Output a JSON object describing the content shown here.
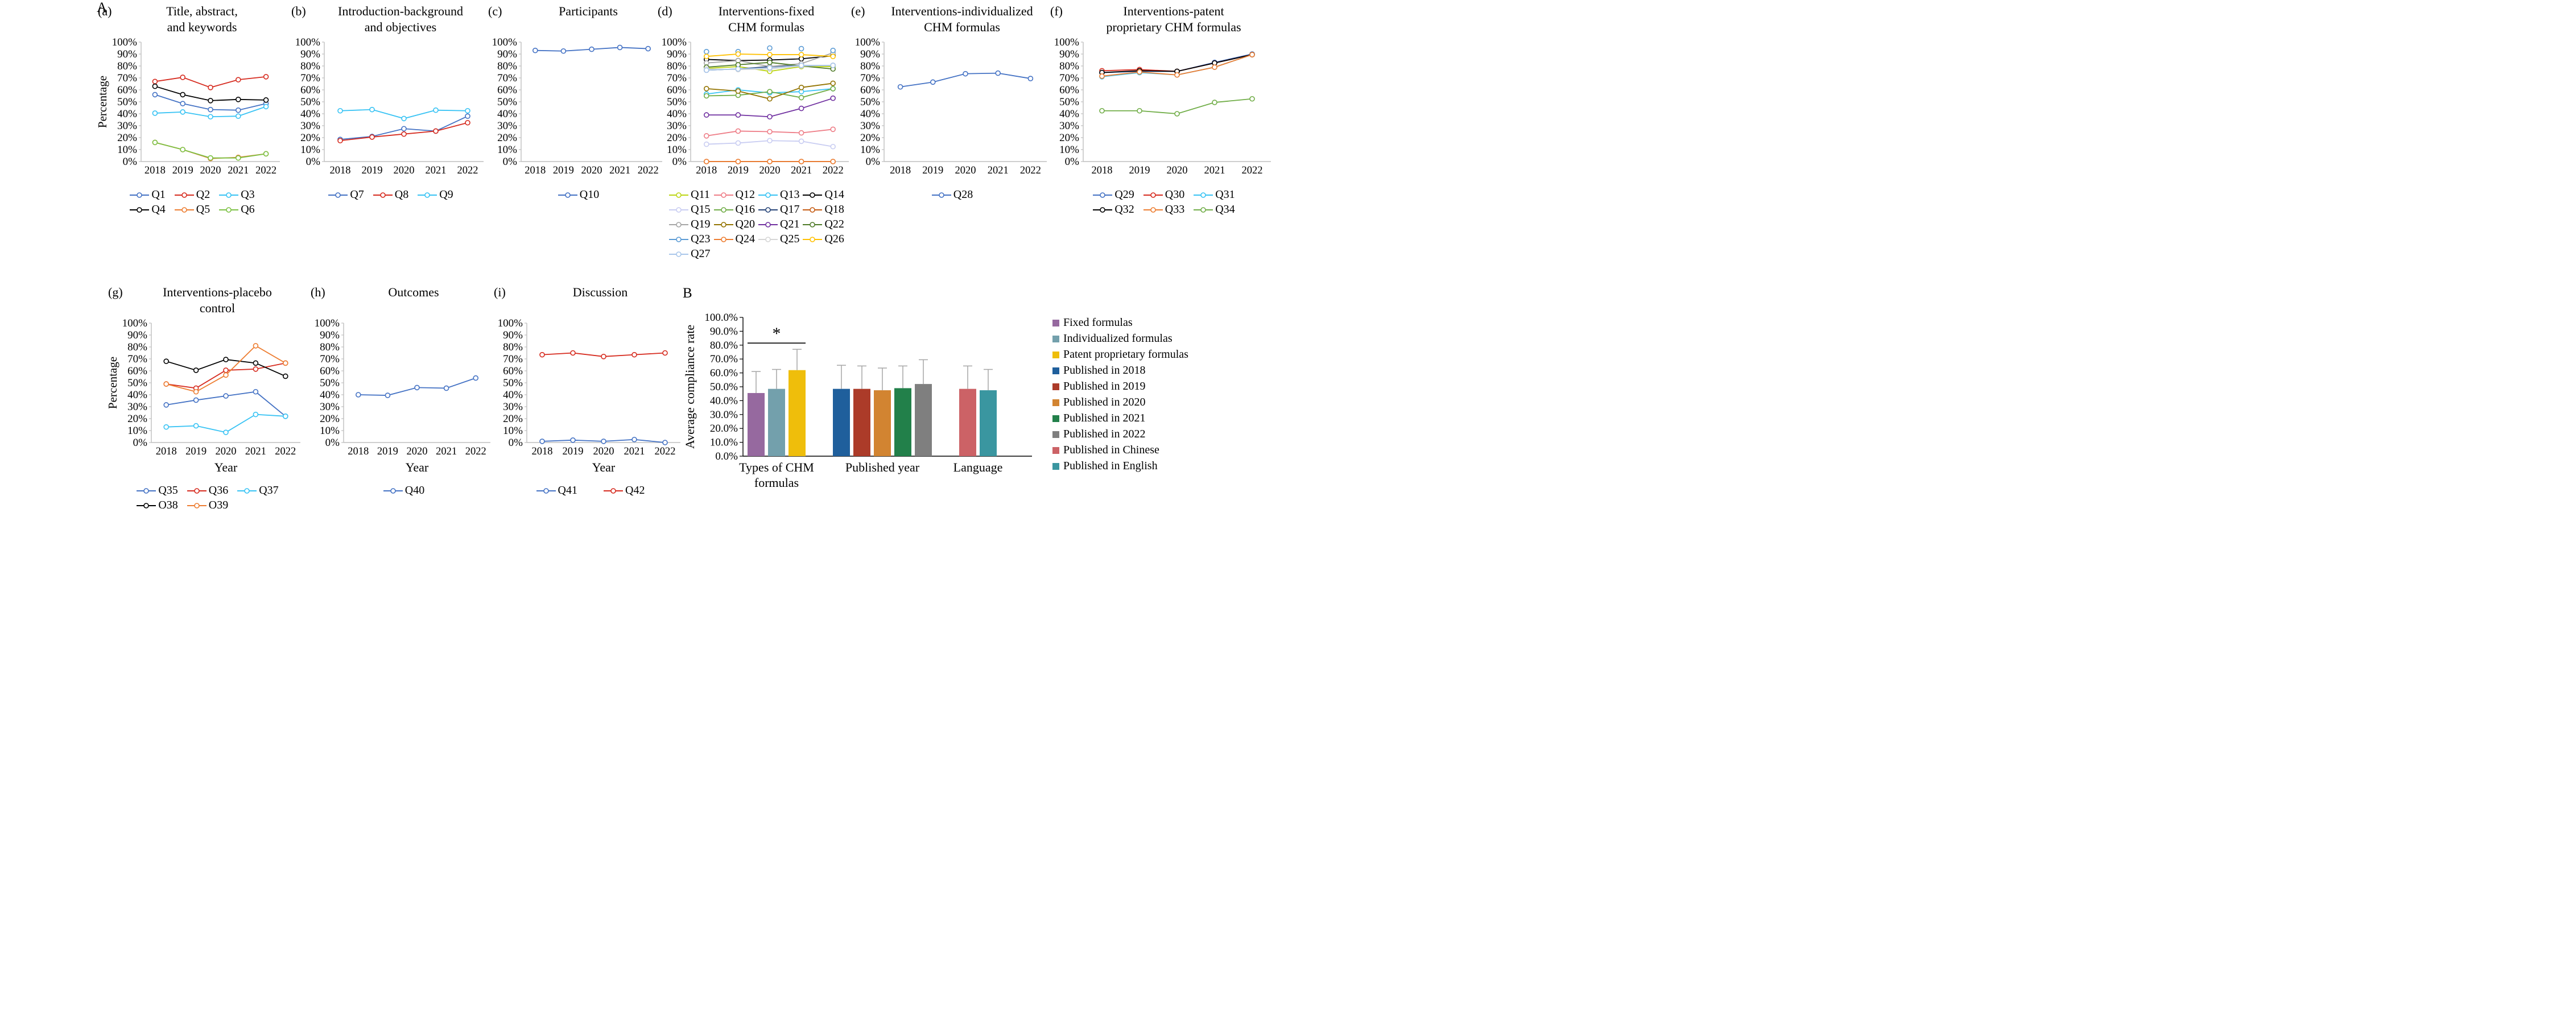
{
  "figure": {
    "panel_a_label": "A",
    "panel_b_label": "B"
  },
  "chart_data": [
    {
      "id": "a",
      "type": "line",
      "tag": "(a)",
      "title": [
        "Title, abstract,",
        "and keywords"
      ],
      "ylabel": "Percentage",
      "xlabel": "",
      "ylim": [
        0,
        100
      ],
      "legend_cols": 3,
      "categories": [
        "2018",
        "2019",
        "2020",
        "2021",
        "2022"
      ],
      "yticks": [
        "100%",
        "90%",
        "80%",
        "70%",
        "60%",
        "50%",
        "40%",
        "30%",
        "20%",
        "10%",
        "0%"
      ],
      "series": [
        {
          "name": "Q1",
          "color": "#4472C4",
          "values": [
            56,
            48.5,
            43.5,
            43,
            48.5
          ]
        },
        {
          "name": "Q2",
          "color": "#D62B1F",
          "values": [
            67,
            70.5,
            62,
            68.5,
            71
          ]
        },
        {
          "name": "Q3",
          "color": "#38C3F4",
          "values": [
            40.5,
            41.5,
            37.5,
            38,
            46
          ]
        },
        {
          "name": "Q4",
          "color": "#000000",
          "values": [
            63,
            56,
            51,
            52,
            51.5
          ]
        },
        {
          "name": "Q5",
          "color": "#ED7D31",
          "values": [
            16,
            10,
            2.5,
            3.5,
            6.5
          ]
        },
        {
          "name": "Q6",
          "color": "#7CC143",
          "values": [
            16,
            10,
            3,
            3,
            6.5
          ]
        }
      ]
    },
    {
      "id": "b",
      "type": "line",
      "tag": "(b)",
      "title": [
        "Introduction-background",
        "and objectives"
      ],
      "ylabel": "",
      "xlabel": "",
      "ylim": [
        0,
        100
      ],
      "legend_cols": 3,
      "categories": [
        "2018",
        "2019",
        "2020",
        "2021",
        "2022"
      ],
      "yticks": [
        "100%",
        "90%",
        "80%",
        "70%",
        "60%",
        "50%",
        "40%",
        "30%",
        "20%",
        "10%",
        "0%"
      ],
      "series": [
        {
          "name": "Q7",
          "color": "#4472C4",
          "values": [
            18.5,
            21,
            27.5,
            25.5,
            38
          ]
        },
        {
          "name": "Q8",
          "color": "#D62B1F",
          "values": [
            17.5,
            20.5,
            23,
            25.5,
            32.5
          ]
        },
        {
          "name": "Q9",
          "color": "#38C3F4",
          "values": [
            42.5,
            43.5,
            36,
            43,
            42.5
          ]
        }
      ]
    },
    {
      "id": "c",
      "type": "line",
      "tag": "(c)",
      "title": [
        "Participants"
      ],
      "ylabel": "",
      "xlabel": "",
      "ylim": [
        0,
        100
      ],
      "legend_cols": 1,
      "categories": [
        "2018",
        "2019",
        "2020",
        "2021",
        "2022"
      ],
      "yticks": [
        "100%",
        "90%",
        "80%",
        "70%",
        "60%",
        "50%",
        "40%",
        "30%",
        "20%",
        "10%",
        "0%"
      ],
      "series": [
        {
          "name": "Q10",
          "color": "#4472C4",
          "values": [
            93,
            92.5,
            94,
            95.5,
            94.5
          ]
        }
      ]
    },
    {
      "id": "d",
      "type": "line",
      "tag": "(d)",
      "title": [
        "Interventions-fixed",
        "CHM formulas"
      ],
      "ylabel": "",
      "xlabel": "",
      "ylim": [
        0,
        100
      ],
      "legend_cols": 4,
      "categories": [
        "2018",
        "2019",
        "2020",
        "2021",
        "2022"
      ],
      "yticks": [
        "100%",
        "90%",
        "80%",
        "70%",
        "60%",
        "50%",
        "40%",
        "30%",
        "20%",
        "10%",
        "0%"
      ],
      "series": [
        {
          "name": "Q11",
          "color": "#BCD514",
          "values": [
            78,
            79.5,
            75.5,
            79.5,
            79.5
          ]
        },
        {
          "name": "Q12",
          "color": "#EE7D87",
          "values": [
            21.5,
            25.5,
            25,
            24,
            27
          ]
        },
        {
          "name": "Q13",
          "color": "#38C3F4",
          "values": [
            56.5,
            60,
            57.5,
            58.5,
            61
          ]
        },
        {
          "name": "Q14",
          "color": "#000000",
          "values": [
            85.5,
            84.5,
            85,
            86,
            88.5
          ]
        },
        {
          "name": "Q15",
          "color": "#C9CDF2",
          "values": [
            14.5,
            15.5,
            17.5,
            17,
            12.5
          ]
        },
        {
          "name": "Q16",
          "color": "#70AD47",
          "values": [
            55,
            55.5,
            58.5,
            53.5,
            61
          ]
        },
        {
          "name": "Q17",
          "color": "#264478",
          "values": [
            76.5,
            77.5,
            79.5,
            80.5,
            80.5
          ]
        },
        {
          "name": "Q18",
          "color": "#C55A11",
          "values": [
            0,
            0,
            0,
            0,
            0
          ]
        },
        {
          "name": "Q19",
          "color": "#A5A5A5",
          "values": [
            82.5,
            84.5,
            79.5,
            82,
            91
          ]
        },
        {
          "name": "Q20",
          "color": "#937300",
          "values": [
            61,
            59,
            52.5,
            62,
            65.5
          ]
        },
        {
          "name": "Q21",
          "color": "#7030A0",
          "values": [
            39,
            39,
            37.5,
            44.5,
            53
          ]
        },
        {
          "name": "Q22",
          "color": "#4E7A27",
          "values": [
            79,
            81,
            83,
            80,
            77.5
          ]
        },
        {
          "name": "Q23",
          "color": "#5B9BD5",
          "values": [
            92,
            92,
            95,
            94.5,
            93
          ],
          "markers_only": true
        },
        {
          "name": "Q24",
          "color": "#ED7D31",
          "values": [
            0,
            0,
            0,
            0,
            0
          ]
        },
        {
          "name": "Q25",
          "color": "#D6D6D6",
          "values": [
            77.5,
            77,
            77.5,
            80,
            80.5
          ]
        },
        {
          "name": "Q26",
          "color": "#FFC000",
          "values": [
            88,
            90,
            89.5,
            89.5,
            88
          ]
        },
        {
          "name": "Q27",
          "color": "#A8C6EA",
          "values": [
            76.5,
            77.5,
            78.5,
            80.5,
            80.5
          ]
        }
      ]
    },
    {
      "id": "e",
      "type": "line",
      "tag": "(e)",
      "title": [
        "Interventions-individualized",
        "CHM formulas"
      ],
      "ylabel": "",
      "xlabel": "",
      "ylim": [
        0,
        100
      ],
      "legend_cols": 1,
      "categories": [
        "2018",
        "2019",
        "2020",
        "2021",
        "2022"
      ],
      "yticks": [
        "100%",
        "90%",
        "80%",
        "70%",
        "60%",
        "50%",
        "40%",
        "30%",
        "20%",
        "10%",
        "0%"
      ],
      "series": [
        {
          "name": "Q28",
          "color": "#4472C4",
          "values": [
            62.5,
            66.5,
            73.5,
            74,
            69.5
          ]
        }
      ]
    },
    {
      "id": "f",
      "type": "line",
      "tag": "(f)",
      "title": [
        "Interventions-patent",
        "proprietary CHM formulas"
      ],
      "ylabel": "",
      "xlabel": "",
      "ylim": [
        0,
        100
      ],
      "legend_cols": 3,
      "categories": [
        "2018",
        "2019",
        "2020",
        "2021",
        "2022"
      ],
      "yticks": [
        "100%",
        "90%",
        "80%",
        "70%",
        "60%",
        "50%",
        "40%",
        "30%",
        "20%",
        "10%",
        "0%"
      ],
      "series": [
        {
          "name": "Q29",
          "color": "#4472C4",
          "values": [
            74.5,
            75.5,
            75.5,
            83,
            90
          ]
        },
        {
          "name": "Q30",
          "color": "#D62B1F",
          "values": [
            76,
            77,
            75.5,
            82.5,
            89.5
          ]
        },
        {
          "name": "Q31",
          "color": "#38C3F4",
          "values": [
            71,
            74.5,
            72.5,
            79,
            89.5
          ]
        },
        {
          "name": "Q32",
          "color": "#000000",
          "values": [
            74.5,
            76,
            75.5,
            82.5,
            89.5
          ]
        },
        {
          "name": "Q33",
          "color": "#ED7D31",
          "values": [
            71.5,
            75,
            72.5,
            79,
            89.5
          ]
        },
        {
          "name": "Q34",
          "color": "#70AD47",
          "values": [
            42.5,
            42.5,
            40,
            49.5,
            52.5
          ]
        }
      ]
    },
    {
      "id": "g",
      "type": "line",
      "tag": "(g)",
      "title": [
        "Interventions-placebo",
        "control"
      ],
      "ylabel": "Percentage",
      "xlabel": "Year",
      "ylim": [
        0,
        100
      ],
      "legend_cols": 3,
      "categories": [
        "2018",
        "2019",
        "2020",
        "2021",
        "2022"
      ],
      "yticks": [
        "100%",
        "90%",
        "80%",
        "70%",
        "60%",
        "50%",
        "40%",
        "30%",
        "20%",
        "10%",
        "0%"
      ],
      "series": [
        {
          "name": "Q35",
          "color": "#4472C4",
          "values": [
            31.5,
            35.5,
            39,
            42.5,
            22
          ]
        },
        {
          "name": "Q36",
          "color": "#D62B1F",
          "values": [
            49,
            45.5,
            60.5,
            61.5,
            66.5
          ]
        },
        {
          "name": "Q37",
          "color": "#38C3F4",
          "values": [
            13,
            14,
            8.5,
            23.5,
            22
          ]
        },
        {
          "name": "Q38",
          "color": "#000000",
          "values": [
            68,
            60.5,
            69.5,
            66.5,
            55.5
          ]
        },
        {
          "name": "Q39",
          "color": "#ED7D31",
          "values": [
            49,
            42.5,
            56.5,
            81,
            66.5
          ]
        }
      ]
    },
    {
      "id": "h",
      "type": "line",
      "tag": "(h)",
      "title": [
        "Outcomes"
      ],
      "ylabel": "",
      "xlabel": "Year",
      "ylim": [
        0,
        100
      ],
      "legend_cols": 1,
      "categories": [
        "2018",
        "2019",
        "2020",
        "2021",
        "2022"
      ],
      "yticks": [
        "100%",
        "90%",
        "80%",
        "70%",
        "60%",
        "50%",
        "40%",
        "30%",
        "20%",
        "10%",
        "0%"
      ],
      "series": [
        {
          "name": "Q40",
          "color": "#4472C4",
          "values": [
            40,
            39.5,
            46,
            45.5,
            54
          ]
        }
      ]
    },
    {
      "id": "i",
      "type": "line",
      "tag": "(i)",
      "title": [
        "Discussion"
      ],
      "ylabel": "",
      "xlabel": "Year",
      "ylim": [
        0,
        100
      ],
      "legend_cols": 2,
      "categories": [
        "2018",
        "2019",
        "2020",
        "2021",
        "2022"
      ],
      "yticks": [
        "100%",
        "90%",
        "80%",
        "70%",
        "60%",
        "50%",
        "40%",
        "30%",
        "20%",
        "10%",
        "0%"
      ],
      "series": [
        {
          "name": "Q41",
          "color": "#4472C4",
          "values": [
            1,
            2,
            1,
            2.5,
            0
          ]
        },
        {
          "name": "Q42",
          "color": "#D62B1F",
          "values": [
            73.5,
            75,
            72,
            73.5,
            75
          ]
        }
      ]
    },
    {
      "id": "B",
      "type": "bar",
      "tag": "B",
      "ylabel": "Average compliance rate",
      "ylim": [
        0,
        100
      ],
      "yticks": [
        "100.0%",
        "90.0%",
        "80.0%",
        "70.0%",
        "60.0%",
        "50.0%",
        "40.0%",
        "30.0%",
        "20.0%",
        "10.0%",
        "0.0%"
      ],
      "groups": [
        {
          "label_lines": [
            "Types of CHM",
            "formulas"
          ],
          "bars": [
            {
              "name": "Fixed formulas",
              "color": "#96699F",
              "value": 45.5,
              "err_top": 61
            },
            {
              "name": "Individualized formulas",
              "color": "#73A0AC",
              "value": 48.5,
              "err_top": 62.5
            },
            {
              "name": "Patent proprietary formulas",
              "color": "#EFBE0B",
              "value": 62,
              "err_top": 77
            }
          ]
        },
        {
          "label_lines": [
            "Published year"
          ],
          "bars": [
            {
              "name": "Published in 2018",
              "color": "#1F5F9C",
              "value": 48.5,
              "err_top": 65.5
            },
            {
              "name": "Published in 2019",
              "color": "#AC3B29",
              "value": 48.5,
              "err_top": 65
            },
            {
              "name": "Published in 2020",
              "color": "#D28431",
              "value": 47.5,
              "err_top": 63.5
            },
            {
              "name": "Published in 2021",
              "color": "#22804A",
              "value": 49,
              "err_top": 65
            },
            {
              "name": "Published in 2022",
              "color": "#7F7F7F",
              "value": 52,
              "err_top": 69.5
            }
          ]
        },
        {
          "label_lines": [
            "Language"
          ],
          "bars": [
            {
              "name": "Published in Chinese",
              "color": "#CC6266",
              "value": 48.5,
              "err_top": 65
            },
            {
              "name": "Published in English",
              "color": "#3A96A0",
              "value": 47.5,
              "err_top": 62.5
            }
          ]
        }
      ],
      "significance": {
        "label": "*",
        "group": 0,
        "from_bar": 0,
        "to_bar": 2,
        "y": 81.5
      },
      "legend": [
        {
          "label": "Fixed formulas",
          "color": "#96699F"
        },
        {
          "label": "Individualized formulas",
          "color": "#73A0AC"
        },
        {
          "label": "Patent proprietary formulas",
          "color": "#EFBE0B"
        },
        {
          "label": "Published in 2018",
          "color": "#1F5F9C"
        },
        {
          "label": "Published in 2019",
          "color": "#AC3B29"
        },
        {
          "label": "Published in 2020",
          "color": "#D28431"
        },
        {
          "label": "Published in 2021",
          "color": "#22804A"
        },
        {
          "label": "Published in 2022",
          "color": "#7F7F7F"
        },
        {
          "label": "Published in Chinese",
          "color": "#CC6266"
        },
        {
          "label": "Published in English",
          "color": "#3A96A0"
        }
      ]
    }
  ]
}
